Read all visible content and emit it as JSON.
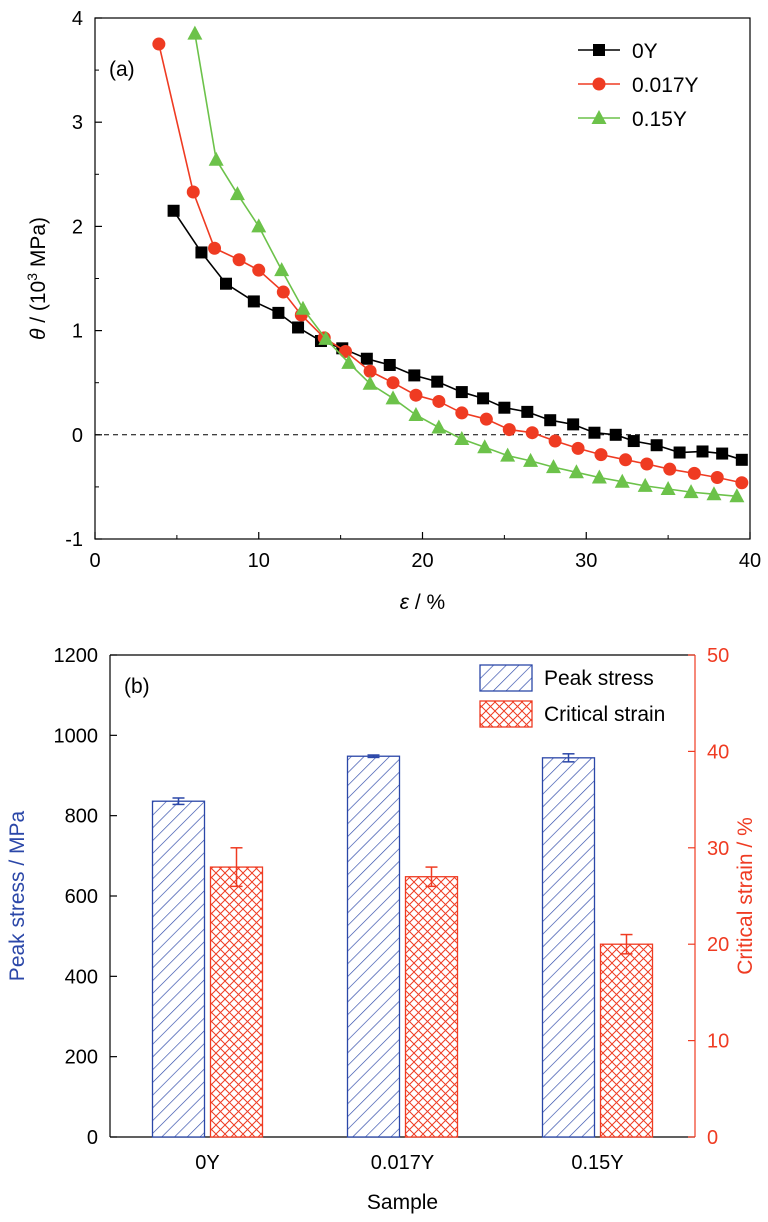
{
  "figure": {
    "panel_a": {
      "panel_label": "(a)",
      "chart_data": {
        "type": "line",
        "ylabel_parts": {
          "symbol": "θ",
          "sep": " / (10",
          "exp": "3",
          "unit": " MPa)"
        },
        "xlabel_parts": {
          "symbol": "ε",
          "unit": " / %"
        },
        "xlim": [
          0,
          40
        ],
        "ylim": [
          -1,
          4
        ],
        "xticks": [
          "0",
          "10",
          "20",
          "30",
          "40"
        ],
        "yticks": [
          "-1",
          "0",
          "1",
          "2",
          "3",
          "4"
        ],
        "reference_line": {
          "y": 0,
          "style": "dashed"
        },
        "legend_position": "top-right",
        "series": [
          {
            "name": "0Y",
            "color": "#000000",
            "marker": "square",
            "x": [
              4.8,
              6.5,
              8.0,
              9.7,
              11.2,
              12.4,
              13.8,
              15.1,
              16.6,
              18.0,
              19.5,
              20.9,
              22.4,
              23.7,
              25.0,
              26.4,
              27.8,
              29.2,
              30.5,
              31.8,
              32.9,
              34.3,
              35.7,
              37.1,
              38.3,
              39.5
            ],
            "y": [
              2.15,
              1.75,
              1.45,
              1.28,
              1.17,
              1.03,
              0.9,
              0.83,
              0.73,
              0.67,
              0.57,
              0.51,
              0.41,
              0.35,
              0.26,
              0.22,
              0.14,
              0.1,
              0.02,
              0.0,
              -0.06,
              -0.1,
              -0.17,
              -0.16,
              -0.18,
              -0.24
            ]
          },
          {
            "name": "0.017Y",
            "color": "#ef3b22",
            "marker": "circle",
            "x": [
              3.9,
              6.0,
              7.3,
              8.8,
              10.0,
              11.5,
              12.6,
              14.0,
              15.3,
              16.8,
              18.2,
              19.6,
              21.0,
              22.4,
              23.9,
              25.3,
              26.7,
              28.1,
              29.5,
              30.9,
              32.4,
              33.7,
              35.1,
              36.6,
              38.0,
              39.5
            ],
            "y": [
              3.75,
              2.33,
              1.79,
              1.68,
              1.58,
              1.37,
              1.15,
              0.93,
              0.8,
              0.61,
              0.5,
              0.38,
              0.32,
              0.21,
              0.15,
              0.05,
              0.02,
              -0.06,
              -0.13,
              -0.19,
              -0.24,
              -0.28,
              -0.33,
              -0.37,
              -0.41,
              -0.46
            ]
          },
          {
            "name": "0.15Y",
            "color": "#6cc24a",
            "marker": "triangle",
            "x": [
              6.1,
              7.4,
              8.7,
              10.0,
              11.4,
              12.7,
              14.1,
              15.5,
              16.8,
              18.2,
              19.6,
              21.0,
              22.4,
              23.8,
              25.2,
              26.6,
              28.0,
              29.4,
              30.8,
              32.2,
              33.6,
              35.0,
              36.4,
              37.8,
              39.2
            ],
            "y": [
              3.85,
              2.64,
              2.31,
              2.0,
              1.58,
              1.21,
              0.92,
              0.69,
              0.49,
              0.35,
              0.19,
              0.07,
              -0.04,
              -0.12,
              -0.2,
              -0.25,
              -0.31,
              -0.36,
              -0.41,
              -0.45,
              -0.49,
              -0.52,
              -0.55,
              -0.57,
              -0.59
            ]
          }
        ]
      }
    },
    "panel_b": {
      "panel_label": "(b)",
      "chart_data": {
        "type": "bar",
        "categories": [
          "0Y",
          "0.017Y",
          "0.15Y"
        ],
        "xlabel": "Sample",
        "ylabel_left": "Peak stress / MPa",
        "ylabel_right": "Critical strain / %",
        "ylim_left": [
          0,
          1200
        ],
        "ylim_right": [
          0,
          50
        ],
        "yticks_left": [
          "0",
          "200",
          "400",
          "600",
          "800",
          "1000",
          "1200"
        ],
        "yticks_right": [
          "0",
          "10",
          "20",
          "30",
          "40",
          "50"
        ],
        "legend_position": "top-right",
        "colors": {
          "left_axis": "#2b47a8",
          "right_axis": "#ef3b22"
        },
        "series": [
          {
            "name": "Peak stress",
            "axis": "left",
            "pattern": "diagonal-hatch",
            "color": "#2b47a8",
            "values": [
              836,
              948,
              944
            ],
            "errors": [
              8,
              3,
              10
            ]
          },
          {
            "name": "Critical strain",
            "axis": "right",
            "pattern": "cross-hatch",
            "color": "#ef3b22",
            "values": [
              28.0,
              27.0,
              20.0
            ],
            "errors": [
              2.0,
              1.0,
              1.0
            ]
          }
        ]
      }
    }
  }
}
